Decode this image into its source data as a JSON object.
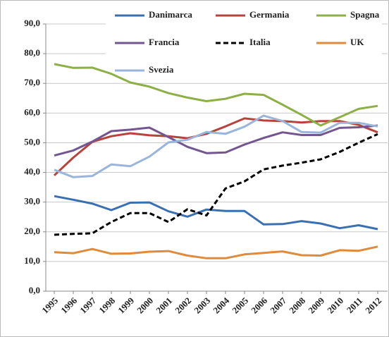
{
  "chart_data": {
    "type": "line",
    "x": [
      "1995",
      "1996",
      "1997",
      "1998",
      "1999",
      "2000",
      "2001",
      "2002",
      "2003",
      "2004",
      "2005",
      "2006",
      "2007",
      "2008",
      "2009",
      "2010",
      "2011",
      "2012"
    ],
    "series": [
      {
        "name": "Danimarca",
        "color": "#3a6fb0",
        "values": [
          32.0,
          30.8,
          29.5,
          27.3,
          29.8,
          29.9,
          26.9,
          25.1,
          27.5,
          27.0,
          27.0,
          22.5,
          22.6,
          23.6,
          22.8,
          21.2,
          22.2,
          20.9
        ]
      },
      {
        "name": "Germania",
        "color": "#b8423c",
        "values": [
          39.0,
          45.0,
          50.3,
          52.2,
          53.2,
          52.5,
          52.2,
          51.5,
          53.0,
          55.5,
          58.2,
          57.5,
          57.3,
          56.8,
          57.3,
          57.3,
          56.0,
          53.5
        ]
      },
      {
        "name": "Spagna",
        "color": "#8db046",
        "values": [
          76.5,
          75.2,
          75.3,
          73.2,
          70.3,
          68.9,
          66.7,
          65.2,
          64.0,
          64.8,
          66.5,
          66.1,
          62.8,
          59.4,
          55.8,
          58.6,
          61.4,
          62.4
        ]
      },
      {
        "name": "Francia",
        "color": "#73568f",
        "values": [
          45.7,
          47.4,
          50.4,
          53.9,
          54.4,
          55.1,
          51.9,
          48.6,
          46.5,
          46.7,
          49.4,
          51.6,
          53.5,
          52.6,
          52.6,
          55.0,
          55.2,
          55.8
        ]
      },
      {
        "name": "Italia",
        "color": "#000000",
        "dashed": true,
        "values": [
          19.0,
          19.3,
          19.5,
          23.3,
          26.3,
          26.3,
          23.3,
          27.6,
          25.5,
          34.6,
          37.0,
          41.0,
          42.3,
          43.3,
          44.4,
          46.9,
          50.0,
          52.9
        ]
      },
      {
        "name": "UK",
        "color": "#e08a3c",
        "values": [
          13.1,
          12.8,
          14.2,
          12.6,
          12.7,
          13.3,
          13.5,
          12.0,
          11.1,
          11.1,
          12.4,
          12.9,
          13.4,
          12.1,
          12.0,
          13.8,
          13.6,
          15.0
        ]
      },
      {
        "name": "Svezia",
        "color": "#9ab5dc",
        "values": [
          40.9,
          38.4,
          38.8,
          42.7,
          42.1,
          45.3,
          50.1,
          51.0,
          53.6,
          53.0,
          55.4,
          59.1,
          57.3,
          53.6,
          53.4,
          56.7,
          56.7,
          55.5
        ]
      }
    ],
    "ylim": [
      0,
      90
    ],
    "yticks": [
      {
        "value": 0,
        "label": "0,0"
      },
      {
        "value": 10,
        "label": "10,0"
      },
      {
        "value": 20,
        "label": "20,0"
      },
      {
        "value": 30,
        "label": "30,0"
      },
      {
        "value": 40,
        "label": "40,0"
      },
      {
        "value": 50,
        "label": "50,0"
      },
      {
        "value": 60,
        "label": "60,0"
      },
      {
        "value": 70,
        "label": "70,0"
      },
      {
        "value": 80,
        "label": "80,0"
      },
      {
        "value": 90,
        "label": "90,0"
      }
    ],
    "grid": true,
    "legend": "top"
  }
}
